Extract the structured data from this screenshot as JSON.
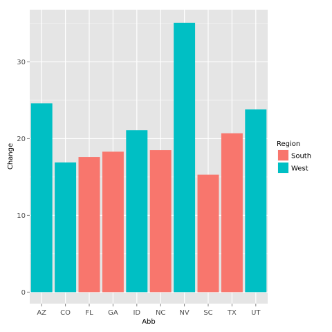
{
  "chart_data": {
    "type": "bar",
    "title": "",
    "xlabel": "Abb",
    "ylabel": "Change",
    "ylim": [
      -1.5,
      36.8
    ],
    "y_ticks": [
      0,
      10,
      20,
      30
    ],
    "y_tick_labels": [
      "0",
      "10",
      "20",
      "30"
    ],
    "grid": true,
    "legend_placement": "right",
    "legend_title": "Region",
    "categories": [
      "AZ",
      "CO",
      "FL",
      "GA",
      "ID",
      "NC",
      "NV",
      "SC",
      "TX",
      "UT"
    ],
    "values": [
      24.6,
      16.9,
      17.6,
      18.3,
      21.1,
      18.5,
      35.1,
      15.3,
      20.7,
      23.8
    ],
    "groups": [
      "West",
      "West",
      "South",
      "South",
      "West",
      "South",
      "West",
      "South",
      "South",
      "West"
    ],
    "series": [
      {
        "name": "South",
        "color": "#F8766D"
      },
      {
        "name": "West",
        "color": "#00BFC4"
      }
    ],
    "panel_color": "#E5E5E5",
    "grid_color": "#FFFFFF"
  }
}
